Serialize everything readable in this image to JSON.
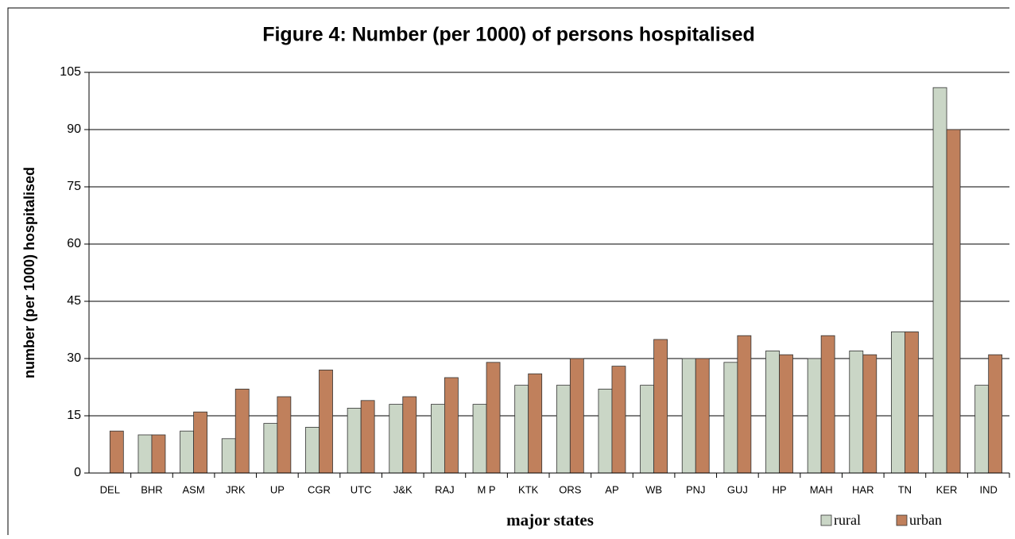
{
  "chart_data": {
    "type": "bar",
    "title": "Figure 4: Number (per 1000) of  persons hospitalised",
    "xlabel": "major states",
    "ylabel": "number (per 1000) hospitalised",
    "categories": [
      "DEL",
      "BHR",
      "ASM",
      "JRK",
      "UP",
      "CGR",
      "UTC",
      "J&K",
      "RAJ",
      "M P",
      "KTK",
      "ORS",
      "AP",
      "WB",
      "PNJ",
      "GUJ",
      "HP",
      "MAH",
      "HAR",
      "TN",
      "KER",
      "IND"
    ],
    "series": [
      {
        "name": "rural",
        "color": "#cad6c6",
        "values": [
          null,
          10,
          11,
          9,
          13,
          12,
          17,
          18,
          18,
          18,
          23,
          23,
          22,
          23,
          30,
          29,
          32,
          30,
          32,
          37,
          101,
          23
        ]
      },
      {
        "name": "urban",
        "color": "#c0805c",
        "values": [
          11,
          10,
          16,
          22,
          20,
          27,
          19,
          20,
          25,
          29,
          26,
          30,
          28,
          35,
          30,
          36,
          31,
          36,
          31,
          37,
          90,
          31
        ]
      }
    ],
    "ylim": [
      0,
      105
    ],
    "yticks": [
      0,
      15,
      30,
      45,
      60,
      75,
      90,
      105
    ],
    "grid": true,
    "legend": "bottom-right"
  }
}
